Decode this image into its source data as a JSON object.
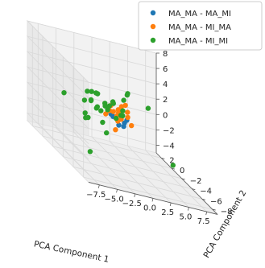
{
  "chart_data": {
    "type": "scatter",
    "projection": "3d",
    "title": "",
    "xlabel": "PCA Component 1",
    "ylabel": "PCA Component 2",
    "zlabel": "",
    "xlim": [
      -9,
      9
    ],
    "ylim": [
      -9,
      3
    ],
    "zlim": [
      -5,
      8
    ],
    "xticks": [
      -7.5,
      -5.0,
      -2.5,
      0.0,
      2.5,
      5.0,
      7.5
    ],
    "xtick_labels": [
      "−7.5",
      "−5.0",
      "−2.5",
      "0.0",
      "2.5",
      "5.0",
      "7.5"
    ],
    "yticks": [
      -8,
      -6,
      -4,
      -2,
      0,
      2
    ],
    "ytick_labels": [
      "−8",
      "−6",
      "−4",
      "−2",
      "0",
      "2"
    ],
    "zticks": [
      -4,
      -2,
      0,
      2,
      4,
      6,
      8
    ],
    "ztick_labels": [
      "−4",
      "−2",
      "0",
      "2",
      "4",
      "6",
      "8"
    ],
    "grid": true,
    "legend_position": "top-right",
    "series": [
      {
        "name": "MA_MA - MA_MI",
        "color": "#1f77b4",
        "points": [
          [
            1.2,
            -0.6,
            -0.8
          ],
          [
            2.2,
            -0.3,
            -0.5
          ],
          [
            0.4,
            -0.2,
            0.2
          ],
          [
            2.9,
            0.2,
            -0.3
          ],
          [
            1.6,
            -1.0,
            -0.6
          ],
          [
            2.1,
            0.5,
            0.0
          ],
          [
            0.9,
            0.1,
            -0.2
          ]
        ]
      },
      {
        "name": "MA_MA - MI_MA",
        "color": "#ff7f0e",
        "points": [
          [
            1.0,
            -0.5,
            0.3
          ],
          [
            1.7,
            0.2,
            0.8
          ],
          [
            2.6,
            -0.4,
            0.4
          ],
          [
            0.2,
            -0.2,
            0.6
          ],
          [
            1.3,
            0.6,
            0.2
          ],
          [
            2.9,
            -0.7,
            -0.4
          ],
          [
            0.8,
            0.4,
            1.0
          ],
          [
            1.9,
            -0.1,
            -0.2
          ],
          [
            -0.4,
            -0.3,
            0.1
          ],
          [
            2.3,
            0.4,
            1.2
          ],
          [
            0.6,
            -0.8,
            -1.4
          ],
          [
            3.2,
            0.5,
            0.6
          ],
          [
            1.5,
            0.0,
            -0.6
          ],
          [
            2.7,
            0.2,
            1.6
          ],
          [
            1.1,
            -0.7,
            0.9
          ]
        ]
      },
      {
        "name": "MA_MA - MI_MI",
        "color": "#2ca02c",
        "points": [
          [
            -7.8,
            -2.5,
            2.6
          ],
          [
            -7.0,
            -6.5,
            -2.2
          ],
          [
            6.0,
            -4.5,
            -2.3
          ],
          [
            6.8,
            1.5,
            1.3
          ],
          [
            -4.5,
            -2.0,
            0.4
          ],
          [
            -3.8,
            -0.9,
            1.5
          ],
          [
            -3.2,
            -0.6,
            2.6
          ],
          [
            -2.6,
            -0.6,
            2.7
          ],
          [
            -2.8,
            -0.2,
            -1.0
          ],
          [
            -1.8,
            -0.6,
            0.9
          ],
          [
            -1.2,
            0.4,
            0.2
          ],
          [
            -0.6,
            -0.4,
            1.5
          ],
          [
            -0.9,
            0.6,
            2.0
          ],
          [
            0.0,
            -0.1,
            0.6
          ],
          [
            0.6,
            0.4,
            0.9
          ],
          [
            -0.3,
            0.8,
            -0.2
          ],
          [
            1.3,
            0.7,
            1.4
          ],
          [
            2.0,
            0.1,
            0.2
          ],
          [
            2.6,
            0.4,
            2.1
          ],
          [
            3.3,
            0.6,
            3.0
          ],
          [
            3.8,
            1.4,
            2.4
          ],
          [
            -0.8,
            -1.0,
            -2.0
          ],
          [
            -1.7,
            -1.5,
            -0.5
          ],
          [
            0.4,
            -1.2,
            0.3
          ],
          [
            1.1,
            -1.5,
            1.0
          ],
          [
            -2.1,
            0.2,
            1.1
          ],
          [
            -1.4,
            1.2,
            0.7
          ],
          [
            0.8,
            1.5,
            0.2
          ],
          [
            1.8,
            1.3,
            0.9
          ],
          [
            2.9,
            1.0,
            0.4
          ],
          [
            -0.2,
            1.9,
            1.4
          ],
          [
            -4.0,
            -1.4,
            -0.5
          ]
        ]
      }
    ]
  }
}
